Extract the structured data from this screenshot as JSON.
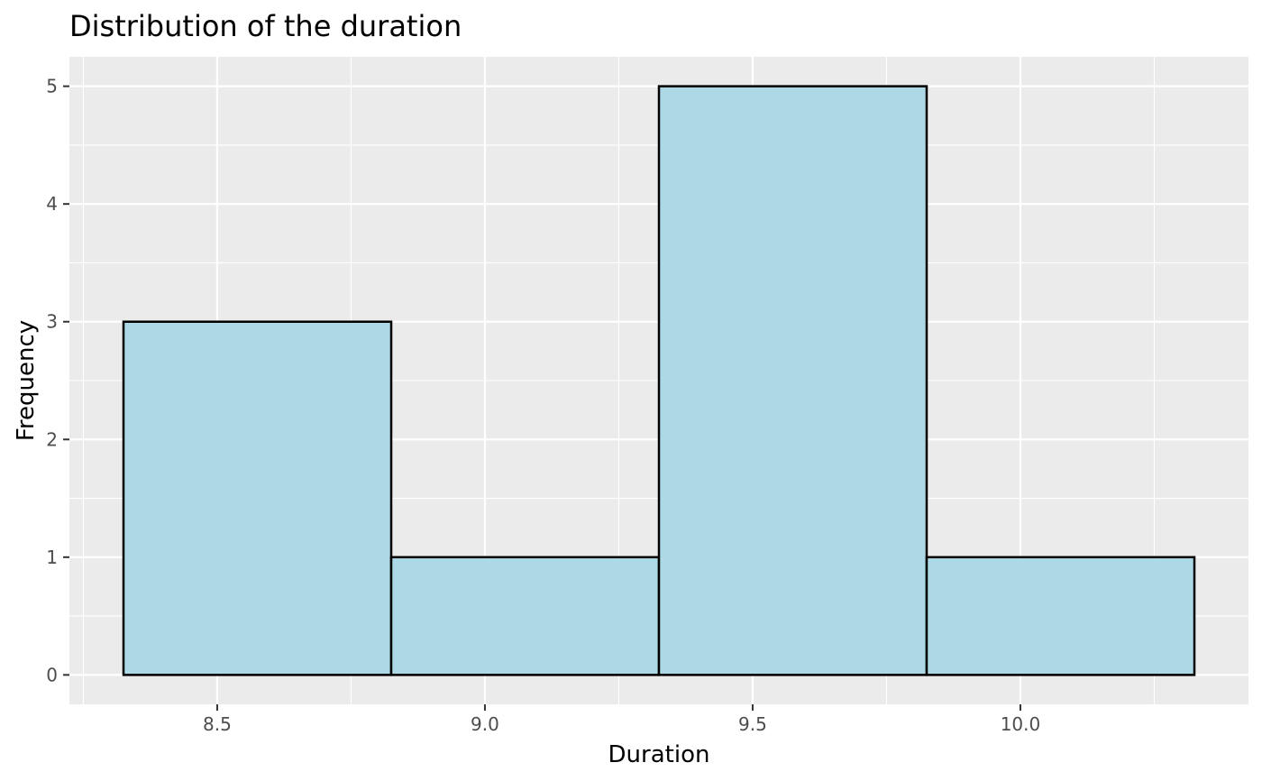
{
  "chart_data": {
    "type": "bar",
    "title": "Distribution of the duration",
    "xlabel": "Duration",
    "ylabel": "Frequency",
    "bins": [
      {
        "x0": 8.325,
        "x1": 8.825,
        "count": 3
      },
      {
        "x0": 8.825,
        "x1": 9.325,
        "count": 1
      },
      {
        "x0": 9.325,
        "x1": 9.825,
        "count": 5
      },
      {
        "x0": 9.825,
        "x1": 10.325,
        "count": 1
      }
    ],
    "xlim": [
      8.224,
      10.426
    ],
    "ylim": [
      -0.25,
      5.25
    ],
    "x_ticks": [
      {
        "value": 8.5,
        "label": "8.5"
      },
      {
        "value": 9.0,
        "label": "9.0"
      },
      {
        "value": 9.5,
        "label": "9.5"
      },
      {
        "value": 10.0,
        "label": "10.0"
      }
    ],
    "y_ticks": [
      {
        "value": 0,
        "label": "0"
      },
      {
        "value": 1,
        "label": "1"
      },
      {
        "value": 2,
        "label": "2"
      },
      {
        "value": 3,
        "label": "3"
      },
      {
        "value": 4,
        "label": "4"
      },
      {
        "value": 5,
        "label": "5"
      }
    ],
    "x_minor": [
      8.25,
      8.75,
      9.25,
      9.75,
      10.25
    ],
    "y_minor": [
      0.5,
      1.5,
      2.5,
      3.5,
      4.5
    ],
    "grid": true,
    "legend": "none",
    "colors": {
      "panel": "#ebebeb",
      "bar_fill": "#add8e6",
      "bar_outline": "#000000"
    }
  }
}
